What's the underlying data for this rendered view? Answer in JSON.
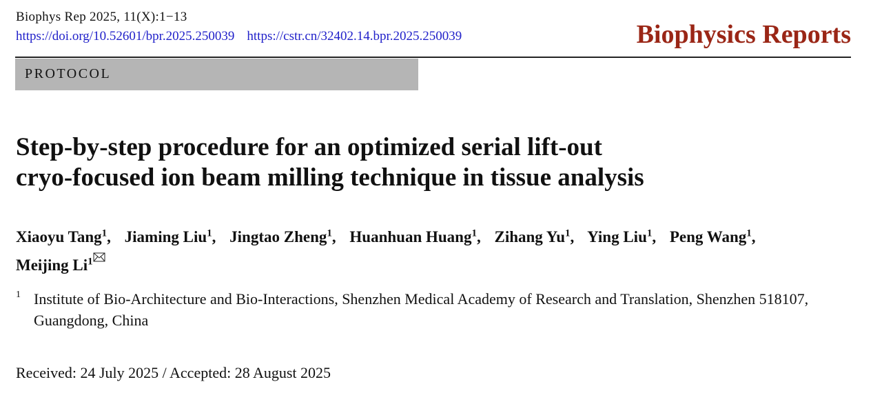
{
  "header": {
    "citation": "Biophys Rep 2025, 11(X):1−13",
    "doi": "https://doi.org/10.52601/bpr.2025.250039",
    "cstr": "https://cstr.cn/32402.14.bpr.2025.250039",
    "journal": "Biophysics Reports"
  },
  "section_label": "PROTOCOL",
  "title_lines": [
    "Step-by-step procedure for an optimized serial lift-out",
    "cryo-focused ion beam milling technique in tissue analysis"
  ],
  "authors": [
    {
      "name": "Xiaoyu Tang",
      "affiliation": "1"
    },
    {
      "name": "Jiaming Liu",
      "affiliation": "1"
    },
    {
      "name": "Jingtao Zheng",
      "affiliation": "1"
    },
    {
      "name": "Huanhuan Huang",
      "affiliation": "1"
    },
    {
      "name": "Zihang Yu",
      "affiliation": "1"
    },
    {
      "name": "Ying Liu",
      "affiliation": "1"
    },
    {
      "name": "Peng Wang",
      "affiliation": "1"
    },
    {
      "name": "Meijing Li",
      "affiliation": "1"
    }
  ],
  "author_separator": ",",
  "affiliations": [
    {
      "marker": "1",
      "text": "Institute of Bio-Architecture and Bio-Interactions, Shenzhen Medical Academy of Research and Translation, Shenzhen 518107, Guangdong, China"
    }
  ],
  "dates": "Received: 24 July 2025 / Accepted: 28 August 2025"
}
